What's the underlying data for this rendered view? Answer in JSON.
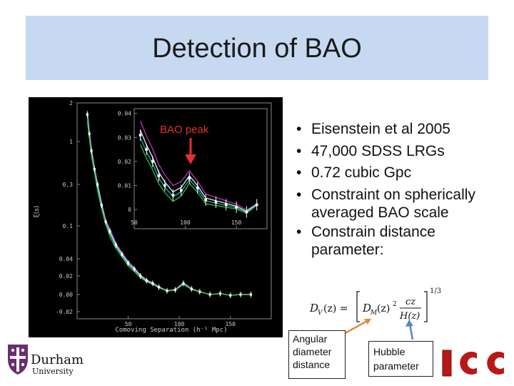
{
  "slide": {
    "title": "Detection of BAO",
    "bullets": [
      "Eisenstein et al 2005",
      "47,000 SDSS LRGs",
      "0.72 cubic Gpc",
      "Constraint on spherically averaged BAO scale",
      "Constrain distance parameter:"
    ],
    "equation": {
      "lhs": "D",
      "lhs_sub": "V",
      "var": "(z) =",
      "inner": "D",
      "inner_sub": "M",
      "inner_rest": "(z)",
      "sq": "2",
      "num": "cz",
      "den": "H(z)",
      "exp": "1/3"
    },
    "box_angular": "Angular diameter distance",
    "box_hubble": "Hubble parameter",
    "logo_left": {
      "name": "Durham",
      "sub": "University"
    },
    "colors": {
      "title_bg": "#c6d9f1",
      "arrow_orange": "#e38a3c",
      "arrow_blue": "#5a86c0",
      "annotation_red": "#e23030"
    }
  },
  "chart_data": [
    {
      "type": "line",
      "xlabel": "Comoving Separation (h⁻¹ Mpc)",
      "ylabel": "ξ(s)",
      "yscale": "custom-compressed",
      "y_ticks": [
        "2",
        "1",
        "0.3",
        "0.1",
        "0.04",
        "0.02",
        "0.00",
        "-0.02"
      ],
      "x_ticks": [
        "50",
        "100",
        "150"
      ],
      "series_colors": [
        "#c040c0",
        "#ffffff",
        "#00c8c8",
        "#40c040"
      ],
      "points_x": [
        10,
        12,
        14,
        17,
        20,
        24,
        28,
        32,
        38,
        44,
        50,
        56,
        62,
        68,
        74,
        80,
        88,
        96,
        104,
        112,
        120,
        130,
        140,
        150,
        160,
        170
      ],
      "points_y": [
        1.7,
        1.2,
        0.85,
        0.55,
        0.3,
        0.2,
        0.12,
        0.09,
        0.065,
        0.048,
        0.035,
        0.028,
        0.02,
        0.015,
        0.012,
        0.008,
        0.004,
        0.005,
        0.012,
        0.006,
        0.003,
        0.0,
        0.001,
        -0.001,
        0.0,
        0.0
      ]
    },
    {
      "type": "line",
      "title": "",
      "annotation": "BAO peak",
      "x_ticks": [
        "50",
        "100",
        "150"
      ],
      "y_ticks": [
        "0.04",
        "0.03",
        "0.02",
        "0.01",
        "0"
      ],
      "xlim": [
        50,
        180
      ],
      "ylim": [
        -0.008,
        0.042
      ],
      "series_colors": [
        "#c040c0",
        "#ffffff",
        "#00c8c8",
        "#40c040"
      ],
      "points_x": [
        56,
        62,
        68,
        74,
        80,
        88,
        96,
        104,
        112,
        120,
        130,
        140,
        150,
        160,
        170
      ],
      "points_y": [
        0.031,
        0.025,
        0.02,
        0.014,
        0.01,
        0.006,
        0.008,
        0.013,
        0.009,
        0.004,
        0.003,
        0.002,
        0.001,
        -0.001,
        0.002
      ]
    }
  ]
}
